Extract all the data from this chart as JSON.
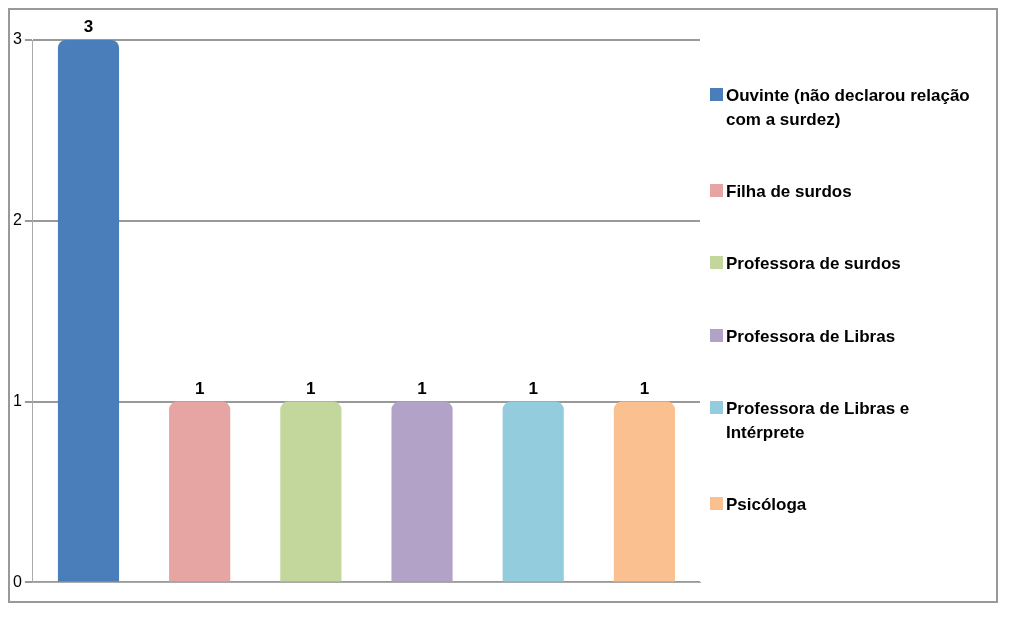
{
  "chart_data": {
    "type": "bar",
    "categories": [
      null
    ],
    "series": [
      {
        "name": "Ouvinte (não declarou relação com a surdez)",
        "color": "#4a7ebb",
        "values": [
          3
        ]
      },
      {
        "name": "Filha de surdos",
        "color": "#e6a4a3",
        "values": [
          1
        ]
      },
      {
        "name": "Professora de surdos",
        "color": "#c3d69b",
        "values": [
          1
        ]
      },
      {
        "name": "Professora de Libras",
        "color": "#b3a2c7",
        "values": [
          1
        ]
      },
      {
        "name": "Professora de Libras e Intérprete",
        "color": "#93cddd",
        "values": [
          1
        ]
      },
      {
        "name": "Psicóloga",
        "color": "#fac090",
        "values": [
          1
        ]
      }
    ],
    "ylim": [
      0,
      3
    ],
    "yticks": [
      0,
      1,
      2,
      3
    ],
    "grid": "y",
    "legend": "right",
    "data_labels": true
  }
}
